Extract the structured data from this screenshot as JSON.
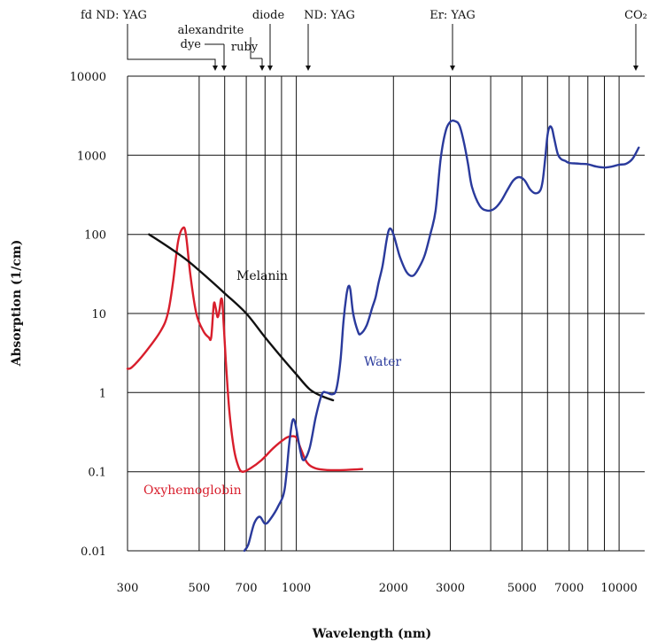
{
  "chart_data": {
    "type": "line",
    "xlabel": "Wavelength (nm)",
    "ylabel": "Absorption (1/cm)",
    "x_scale": "log",
    "y_scale": "log",
    "xlim": [
      300,
      12000
    ],
    "ylim": [
      0.01,
      10000
    ],
    "grid": true,
    "x_ticks": [
      {
        "value": 300,
        "label": "300"
      },
      {
        "value": 500,
        "label": "500"
      },
      {
        "value": 700,
        "label": "700"
      },
      {
        "value": 1000,
        "label": "1000"
      },
      {
        "value": 2000,
        "label": "2000"
      },
      {
        "value": 3000,
        "label": "3000"
      },
      {
        "value": 5000,
        "label": "5000"
      },
      {
        "value": 7000,
        "label": "7000"
      },
      {
        "value": 10000,
        "label": "10000"
      }
    ],
    "x_gridlines": [
      300,
      500,
      600,
      700,
      800,
      900,
      1000,
      2000,
      3000,
      4000,
      5000,
      6000,
      7000,
      8000,
      9000,
      10000
    ],
    "y_ticks": [
      {
        "value": 10000,
        "label": "10000"
      },
      {
        "value": 1000,
        "label": "1000"
      },
      {
        "value": 100,
        "label": "100"
      },
      {
        "value": 10,
        "label": "10"
      },
      {
        "value": 1,
        "label": "1"
      },
      {
        "value": 0.1,
        "label": "0.1"
      },
      {
        "value": 0.01,
        "label": "0.01"
      }
    ],
    "series": [
      {
        "name": "Oxyhemoglobin",
        "color": "#d81e2c",
        "points": [
          [
            300,
            2
          ],
          [
            310,
            2.1
          ],
          [
            340,
            3.2
          ],
          [
            380,
            6
          ],
          [
            400,
            10
          ],
          [
            415,
            25
          ],
          [
            430,
            80
          ],
          [
            445,
            120
          ],
          [
            455,
            100
          ],
          [
            470,
            30
          ],
          [
            490,
            10
          ],
          [
            515,
            6
          ],
          [
            535,
            5
          ],
          [
            545,
            5
          ],
          [
            555,
            13
          ],
          [
            562,
            12
          ],
          [
            570,
            9
          ],
          [
            578,
            11
          ],
          [
            584,
            15
          ],
          [
            590,
            14
          ],
          [
            596,
            7
          ],
          [
            605,
            2.5
          ],
          [
            620,
            0.6
          ],
          [
            640,
            0.2
          ],
          [
            660,
            0.12
          ],
          [
            680,
            0.1
          ],
          [
            720,
            0.11
          ],
          [
            780,
            0.14
          ],
          [
            850,
            0.2
          ],
          [
            920,
            0.26
          ],
          [
            960,
            0.28
          ],
          [
            1000,
            0.27
          ],
          [
            1030,
            0.2
          ],
          [
            1080,
            0.13
          ],
          [
            1150,
            0.11
          ],
          [
            1250,
            0.105
          ],
          [
            1400,
            0.105
          ],
          [
            1600,
            0.108
          ]
        ]
      },
      {
        "name": "Melanin",
        "color": "#111111",
        "points": [
          [
            350,
            100
          ],
          [
            400,
            70
          ],
          [
            450,
            50
          ],
          [
            500,
            35
          ],
          [
            600,
            18
          ],
          [
            700,
            10
          ],
          [
            800,
            5
          ],
          [
            900,
            2.8
          ],
          [
            1000,
            1.7
          ],
          [
            1100,
            1.1
          ],
          [
            1200,
            0.9
          ],
          [
            1300,
            0.8
          ]
        ]
      },
      {
        "name": "Water",
        "color": "#2a3a9c",
        "points": [
          [
            690,
            0.01
          ],
          [
            710,
            0.012
          ],
          [
            740,
            0.022
          ],
          [
            770,
            0.027
          ],
          [
            800,
            0.022
          ],
          [
            830,
            0.025
          ],
          [
            880,
            0.037
          ],
          [
            920,
            0.06
          ],
          [
            950,
            0.22
          ],
          [
            970,
            0.42
          ],
          [
            985,
            0.45
          ],
          [
            1000,
            0.35
          ],
          [
            1030,
            0.18
          ],
          [
            1055,
            0.14
          ],
          [
            1100,
            0.2
          ],
          [
            1150,
            0.5
          ],
          [
            1200,
            0.95
          ],
          [
            1240,
            1.0
          ],
          [
            1290,
            0.95
          ],
          [
            1330,
            1.1
          ],
          [
            1370,
            2.5
          ],
          [
            1400,
            8
          ],
          [
            1430,
            17
          ],
          [
            1450,
            22
          ],
          [
            1470,
            20
          ],
          [
            1500,
            10
          ],
          [
            1550,
            6
          ],
          [
            1580,
            5.5
          ],
          [
            1650,
            7
          ],
          [
            1720,
            12
          ],
          [
            1760,
            16
          ],
          [
            1800,
            25
          ],
          [
            1850,
            40
          ],
          [
            1900,
            80
          ],
          [
            1930,
            110
          ],
          [
            1960,
            118
          ],
          [
            2000,
            100
          ],
          [
            2050,
            70
          ],
          [
            2100,
            50
          ],
          [
            2200,
            33
          ],
          [
            2300,
            30
          ],
          [
            2400,
            38
          ],
          [
            2500,
            55
          ],
          [
            2600,
            100
          ],
          [
            2700,
            200
          ],
          [
            2800,
            900
          ],
          [
            2900,
            2000
          ],
          [
            3000,
            2650
          ],
          [
            3100,
            2700
          ],
          [
            3200,
            2400
          ],
          [
            3300,
            1500
          ],
          [
            3400,
            800
          ],
          [
            3500,
            400
          ],
          [
            3700,
            230
          ],
          [
            3900,
            200
          ],
          [
            4100,
            210
          ],
          [
            4300,
            260
          ],
          [
            4500,
            360
          ],
          [
            4700,
            480
          ],
          [
            4900,
            530
          ],
          [
            5100,
            480
          ],
          [
            5300,
            370
          ],
          [
            5500,
            330
          ],
          [
            5700,
            360
          ],
          [
            5800,
            480
          ],
          [
            5900,
            900
          ],
          [
            6000,
            1800
          ],
          [
            6100,
            2300
          ],
          [
            6200,
            2150
          ],
          [
            6300,
            1600
          ],
          [
            6450,
            1050
          ],
          [
            6600,
            900
          ],
          [
            6800,
            850
          ],
          [
            7000,
            800
          ],
          [
            7300,
            790
          ],
          [
            7600,
            780
          ],
          [
            8000,
            770
          ],
          [
            8500,
            720
          ],
          [
            9000,
            700
          ],
          [
            9500,
            720
          ],
          [
            10000,
            760
          ],
          [
            10500,
            780
          ],
          [
            11000,
            900
          ],
          [
            11500,
            1250
          ]
        ]
      }
    ],
    "series_labels": [
      {
        "text": "Melanin",
        "color": "#111111"
      },
      {
        "text": "Water",
        "color": "#2a3a9c"
      },
      {
        "text": "Oxyhemoglobin",
        "color": "#d81e2c"
      }
    ],
    "laser_annotations": [
      {
        "label": "fd ND: YAG",
        "wavelength": 532
      },
      {
        "label": "alexandrite",
        "wavelength": 755
      },
      {
        "label": "dye",
        "wavelength": 585
      },
      {
        "label": "ruby",
        "wavelength": 694
      },
      {
        "label": "diode",
        "wavelength": 810
      },
      {
        "label": "ND: YAG",
        "wavelength": 1064
      },
      {
        "label": "Er: YAG",
        "wavelength": 2940
      },
      {
        "label": "CO₂",
        "wavelength": 10600
      }
    ]
  }
}
